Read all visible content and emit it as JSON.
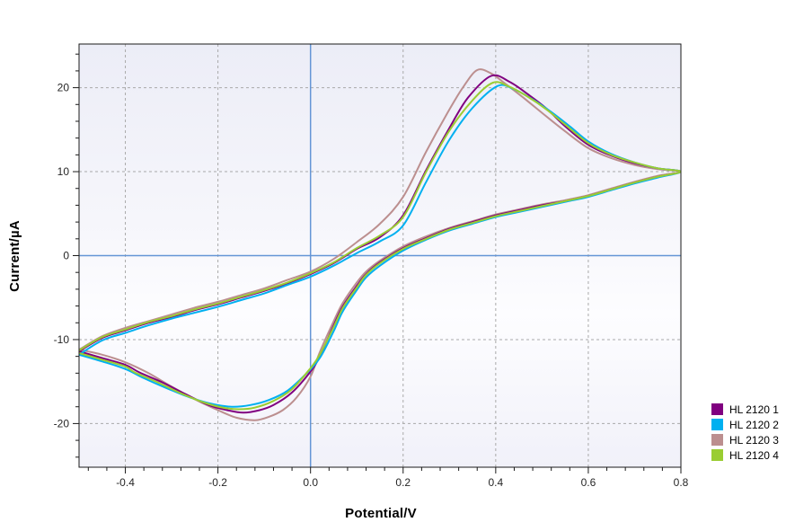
{
  "chart_data": {
    "type": "line",
    "title": "",
    "grid": "dashed-major",
    "legend_position": "outside-right-bottom",
    "grid_color": "#A9A9A9",
    "zero_line_color": "#6495D6",
    "axis_color": "#1a1a1a",
    "x_axis": {
      "label": "Potential/V",
      "min": -0.5,
      "max": 0.8,
      "major_ticks": [
        {
          "value": -0.4,
          "label": "-0.4"
        },
        {
          "value": -0.2,
          "label": "-0.2"
        },
        {
          "value": 0.0,
          "label": "0.0"
        },
        {
          "value": 0.2,
          "label": "0.2"
        },
        {
          "value": 0.4,
          "label": "0.4"
        },
        {
          "value": 0.6,
          "label": "0.6"
        },
        {
          "value": 0.8,
          "label": "0.8"
        }
      ],
      "minor_step": 0.04
    },
    "y_axis": {
      "label": "Current/µA",
      "min": -25.2,
      "max": 25.2,
      "major_ticks": [
        {
          "value": 20,
          "label": "20"
        },
        {
          "value": 10,
          "label": "10"
        },
        {
          "value": 0,
          "label": "0"
        },
        {
          "value": -10,
          "label": "-10"
        },
        {
          "value": -20,
          "label": "-20"
        }
      ],
      "minor_step": 2
    },
    "series": [
      {
        "name": "HL 2120 1",
        "color": "#800080",
        "points": [
          [
            -0.5,
            -11.4
          ],
          [
            -0.45,
            -9.8
          ],
          [
            -0.4,
            -8.9
          ],
          [
            -0.35,
            -8.0
          ],
          [
            -0.3,
            -7.3
          ],
          [
            -0.25,
            -6.5
          ],
          [
            -0.2,
            -5.8
          ],
          [
            -0.15,
            -5.0
          ],
          [
            -0.1,
            -4.2
          ],
          [
            -0.05,
            -3.3
          ],
          [
            0,
            -2.2
          ],
          [
            0.05,
            -0.9
          ],
          [
            0.1,
            0.8
          ],
          [
            0.15,
            2.2
          ],
          [
            0.2,
            4.8
          ],
          [
            0.25,
            10.2
          ],
          [
            0.3,
            15.2
          ],
          [
            0.34,
            18.8
          ],
          [
            0.39,
            21.4
          ],
          [
            0.43,
            20.7
          ],
          [
            0.47,
            19.2
          ],
          [
            0.51,
            17.5
          ],
          [
            0.55,
            15.4
          ],
          [
            0.6,
            13.2
          ],
          [
            0.65,
            11.9
          ],
          [
            0.7,
            11.0
          ],
          [
            0.75,
            10.4
          ],
          [
            0.8,
            10.0
          ],
          [
            0.75,
            9.4
          ],
          [
            0.7,
            8.7
          ],
          [
            0.65,
            7.9
          ],
          [
            0.6,
            7.1
          ],
          [
            0.55,
            6.5
          ],
          [
            0.5,
            6.0
          ],
          [
            0.45,
            5.4
          ],
          [
            0.4,
            4.8
          ],
          [
            0.35,
            4.0
          ],
          [
            0.3,
            3.2
          ],
          [
            0.25,
            2.1
          ],
          [
            0.2,
            0.9
          ],
          [
            0.15,
            -0.8
          ],
          [
            0.12,
            -2.2
          ],
          [
            0.1,
            -3.6
          ],
          [
            0.07,
            -6.0
          ],
          [
            0.05,
            -8.3
          ],
          [
            0.02,
            -12.0
          ],
          [
            0,
            -13.8
          ],
          [
            -0.04,
            -16.3
          ],
          [
            -0.08,
            -17.8
          ],
          [
            -0.11,
            -18.4
          ],
          [
            -0.145,
            -18.7
          ],
          [
            -0.18,
            -18.4
          ],
          [
            -0.22,
            -17.8
          ],
          [
            -0.27,
            -16.5
          ],
          [
            -0.32,
            -15.1
          ],
          [
            -0.37,
            -13.9
          ],
          [
            -0.4,
            -13.0
          ],
          [
            -0.45,
            -12.2
          ],
          [
            -0.5,
            -11.4
          ]
        ]
      },
      {
        "name": "HL 2120 2",
        "color": "#00B0F0",
        "points": [
          [
            -0.5,
            -11.8
          ],
          [
            -0.45,
            -10.1
          ],
          [
            -0.4,
            -9.2
          ],
          [
            -0.35,
            -8.3
          ],
          [
            -0.3,
            -7.5
          ],
          [
            -0.25,
            -6.8
          ],
          [
            -0.2,
            -6.1
          ],
          [
            -0.15,
            -5.3
          ],
          [
            -0.1,
            -4.5
          ],
          [
            -0.05,
            -3.5
          ],
          [
            0,
            -2.5
          ],
          [
            0.05,
            -1.2
          ],
          [
            0.1,
            0.3
          ],
          [
            0.15,
            1.7
          ],
          [
            0.2,
            3.6
          ],
          [
            0.25,
            8.8
          ],
          [
            0.3,
            13.8
          ],
          [
            0.35,
            17.6
          ],
          [
            0.404,
            20.2
          ],
          [
            0.44,
            19.8
          ],
          [
            0.48,
            18.6
          ],
          [
            0.52,
            17.1
          ],
          [
            0.56,
            15.4
          ],
          [
            0.6,
            13.6
          ],
          [
            0.65,
            12.1
          ],
          [
            0.7,
            11.1
          ],
          [
            0.75,
            10.4
          ],
          [
            0.8,
            10.0
          ],
          [
            0.75,
            9.3
          ],
          [
            0.7,
            8.6
          ],
          [
            0.65,
            7.8
          ],
          [
            0.6,
            7.0
          ],
          [
            0.55,
            6.4
          ],
          [
            0.5,
            5.8
          ],
          [
            0.45,
            5.2
          ],
          [
            0.4,
            4.6
          ],
          [
            0.35,
            3.8
          ],
          [
            0.3,
            3.0
          ],
          [
            0.25,
            1.9
          ],
          [
            0.2,
            0.6
          ],
          [
            0.15,
            -1.2
          ],
          [
            0.12,
            -2.6
          ],
          [
            0.1,
            -4.1
          ],
          [
            0.07,
            -6.6
          ],
          [
            0.05,
            -9.0
          ],
          [
            0.02,
            -12.2
          ],
          [
            -0.01,
            -14.1
          ],
          [
            -0.05,
            -16.1
          ],
          [
            -0.09,
            -17.2
          ],
          [
            -0.13,
            -17.8
          ],
          [
            -0.17,
            -18.0
          ],
          [
            -0.21,
            -17.7
          ],
          [
            -0.26,
            -16.9
          ],
          [
            -0.31,
            -15.8
          ],
          [
            -0.36,
            -14.6
          ],
          [
            -0.4,
            -13.5
          ],
          [
            -0.45,
            -12.6
          ],
          [
            -0.5,
            -11.8
          ]
        ]
      },
      {
        "name": "HL 2120 3",
        "color": "#BC8F8F",
        "points": [
          [
            -0.5,
            -11.2
          ],
          [
            -0.45,
            -9.6
          ],
          [
            -0.4,
            -8.6
          ],
          [
            -0.35,
            -7.8
          ],
          [
            -0.3,
            -7.0
          ],
          [
            -0.25,
            -6.2
          ],
          [
            -0.2,
            -5.5
          ],
          [
            -0.15,
            -4.7
          ],
          [
            -0.1,
            -3.9
          ],
          [
            -0.05,
            -2.9
          ],
          [
            0,
            -1.9
          ],
          [
            0.05,
            -0.4
          ],
          [
            0.1,
            1.6
          ],
          [
            0.15,
            3.8
          ],
          [
            0.2,
            7.0
          ],
          [
            0.25,
            12.4
          ],
          [
            0.3,
            17.4
          ],
          [
            0.33,
            20.1
          ],
          [
            0.36,
            22.1
          ],
          [
            0.39,
            21.7
          ],
          [
            0.42,
            20.5
          ],
          [
            0.46,
            18.8
          ],
          [
            0.5,
            17.0
          ],
          [
            0.55,
            14.8
          ],
          [
            0.6,
            12.8
          ],
          [
            0.65,
            11.6
          ],
          [
            0.7,
            10.8
          ],
          [
            0.75,
            10.3
          ],
          [
            0.8,
            10.0
          ],
          [
            0.75,
            9.5
          ],
          [
            0.7,
            8.8
          ],
          [
            0.65,
            8.0
          ],
          [
            0.6,
            7.2
          ],
          [
            0.55,
            6.6
          ],
          [
            0.5,
            6.1
          ],
          [
            0.45,
            5.5
          ],
          [
            0.4,
            4.9
          ],
          [
            0.35,
            4.1
          ],
          [
            0.3,
            3.3
          ],
          [
            0.25,
            2.3
          ],
          [
            0.2,
            1.1
          ],
          [
            0.15,
            -0.6
          ],
          [
            0.12,
            -1.9
          ],
          [
            0.1,
            -3.2
          ],
          [
            0.07,
            -5.6
          ],
          [
            0.05,
            -7.8
          ],
          [
            0.02,
            -11.5
          ],
          [
            0,
            -14.4
          ],
          [
            -0.03,
            -16.9
          ],
          [
            -0.06,
            -18.4
          ],
          [
            -0.09,
            -19.2
          ],
          [
            -0.12,
            -19.6
          ],
          [
            -0.16,
            -19.3
          ],
          [
            -0.2,
            -18.4
          ],
          [
            -0.25,
            -17.1
          ],
          [
            -0.3,
            -15.6
          ],
          [
            -0.35,
            -14.0
          ],
          [
            -0.4,
            -12.7
          ],
          [
            -0.45,
            -11.8
          ],
          [
            -0.5,
            -11.2
          ]
        ]
      },
      {
        "name": "HL 2120 4",
        "color": "#9ACD32",
        "points": [
          [
            -0.5,
            -11.3
          ],
          [
            -0.45,
            -9.7
          ],
          [
            -0.4,
            -8.8
          ],
          [
            -0.35,
            -7.9
          ],
          [
            -0.3,
            -7.2
          ],
          [
            -0.25,
            -6.4
          ],
          [
            -0.2,
            -5.7
          ],
          [
            -0.15,
            -4.9
          ],
          [
            -0.1,
            -4.1
          ],
          [
            -0.05,
            -3.2
          ],
          [
            0,
            -2.1
          ],
          [
            0.05,
            -0.8
          ],
          [
            0.1,
            0.9
          ],
          [
            0.15,
            2.4
          ],
          [
            0.2,
            4.6
          ],
          [
            0.25,
            10.0
          ],
          [
            0.3,
            14.9
          ],
          [
            0.35,
            18.5
          ],
          [
            0.394,
            20.6
          ],
          [
            0.43,
            20.1
          ],
          [
            0.47,
            18.9
          ],
          [
            0.51,
            17.4
          ],
          [
            0.55,
            15.6
          ],
          [
            0.6,
            13.4
          ],
          [
            0.65,
            12.0
          ],
          [
            0.7,
            11.1
          ],
          [
            0.75,
            10.4
          ],
          [
            0.8,
            10.0
          ],
          [
            0.75,
            9.4
          ],
          [
            0.7,
            8.7
          ],
          [
            0.65,
            7.9
          ],
          [
            0.6,
            7.1
          ],
          [
            0.55,
            6.5
          ],
          [
            0.5,
            5.9
          ],
          [
            0.45,
            5.3
          ],
          [
            0.4,
            4.7
          ],
          [
            0.35,
            3.9
          ],
          [
            0.3,
            3.1
          ],
          [
            0.25,
            2.0
          ],
          [
            0.2,
            0.8
          ],
          [
            0.15,
            -0.9
          ],
          [
            0.12,
            -2.3
          ],
          [
            0.1,
            -3.8
          ],
          [
            0.07,
            -6.2
          ],
          [
            0.05,
            -8.5
          ],
          [
            0.02,
            -11.8
          ],
          [
            0,
            -13.4
          ],
          [
            -0.04,
            -15.9
          ],
          [
            -0.08,
            -17.3
          ],
          [
            -0.12,
            -18.1
          ],
          [
            -0.155,
            -18.3
          ],
          [
            -0.19,
            -18.1
          ],
          [
            -0.23,
            -17.5
          ],
          [
            -0.28,
            -16.4
          ],
          [
            -0.33,
            -15.1
          ],
          [
            -0.38,
            -13.9
          ],
          [
            -0.4,
            -13.2
          ],
          [
            -0.45,
            -12.4
          ],
          [
            -0.5,
            -11.6
          ]
        ]
      }
    ]
  }
}
